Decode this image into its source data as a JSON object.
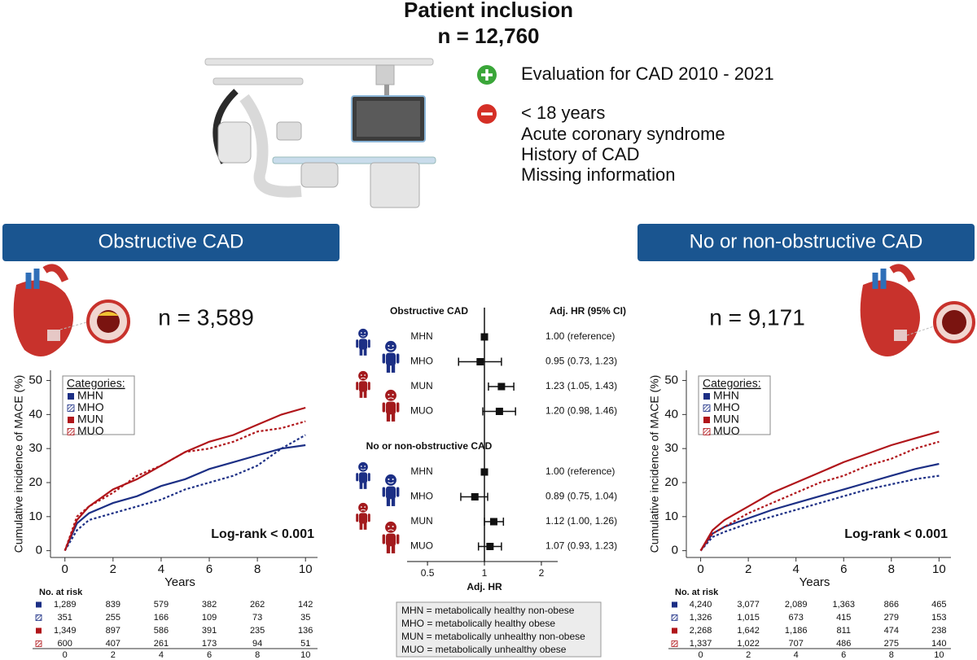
{
  "header": {
    "title": "Patient inclusion",
    "n": "n = 12,760"
  },
  "inclusion": [
    "Evaluation for CAD 2010 - 2021"
  ],
  "exclusion": [
    "< 18 years",
    "Acute coronary syndrome",
    "History of CAD",
    "Missing information"
  ],
  "panels": [
    {
      "title": "Obstructive CAD",
      "n": "n = 3,589"
    },
    {
      "title": "No or non-obstructive CAD",
      "n": "n = 9,171"
    }
  ],
  "abbreviations": [
    "MHN = metabolically healthy non-obese",
    "MHO = metabolically healthy obese",
    "MUN = metabolically unhealthy non-obese",
    "MUO = metabolically unhealthy obese"
  ],
  "chart_data": [
    {
      "type": "line",
      "y_label": "Cumulative incidence of MACE (%)",
      "x_label": "Years",
      "legend_title": "Categories:",
      "annotation": "Log-rank < 0.001",
      "x": [
        0,
        0.5,
        1,
        2,
        3,
        4,
        5,
        6,
        7,
        8,
        9,
        10
      ],
      "series": [
        {
          "name": "MHN",
          "color": "#1c2f85",
          "dash": "solid",
          "values": [
            0,
            8,
            11,
            14,
            16,
            19,
            21,
            24,
            26,
            28,
            30,
            31
          ]
        },
        {
          "name": "MHO",
          "color": "#1c2f85",
          "dash": "dotted",
          "values": [
            0,
            6,
            9,
            11,
            13,
            15,
            18,
            20,
            22,
            25,
            30,
            34
          ]
        },
        {
          "name": "MUN",
          "color": "#b0151a",
          "dash": "solid",
          "values": [
            0,
            9,
            13,
            18,
            21,
            25,
            29,
            32,
            34,
            37,
            40,
            42
          ]
        },
        {
          "name": "MUO",
          "color": "#b0151a",
          "dash": "dotted",
          "values": [
            0,
            10,
            13,
            17,
            22,
            25,
            29,
            30,
            32,
            35,
            36,
            38
          ]
        }
      ],
      "xlim": [
        -0.6,
        10.5
      ],
      "ylim": [
        -2,
        53
      ],
      "xticks": [
        0,
        2,
        4,
        6,
        8,
        10
      ],
      "yticks": [
        0,
        10,
        20,
        30,
        40,
        50
      ],
      "risk_table": {
        "title": "No. at risk",
        "rows": [
          [
            "1,289",
            "839",
            "579",
            "382",
            "262",
            "142"
          ],
          [
            "351",
            "255",
            "166",
            "109",
            "73",
            "35"
          ],
          [
            "1,349",
            "897",
            "586",
            "391",
            "235",
            "136"
          ],
          [
            "600",
            "407",
            "261",
            "173",
            "94",
            "51"
          ]
        ]
      }
    },
    {
      "type": "forest",
      "x_label": "Adj. HR",
      "value_header": "Adj. HR (95% CI)",
      "log_scale": true,
      "xlim": [
        0.39,
        2.44
      ],
      "xticks": [
        0.5,
        1,
        2
      ],
      "groups": [
        {
          "title": "Obstructive CAD",
          "categories": [
            "MHN",
            "MHO",
            "MUN",
            "MUO"
          ],
          "values": [
            1,
            0.95,
            1.23,
            1.2
          ],
          "lower": [
            null,
            0.73,
            1.05,
            0.98
          ],
          "upper": [
            null,
            1.23,
            1.43,
            1.46
          ],
          "value_labels": [
            "1.00 (reference)",
            "0.95 (0.73, 1.23)",
            "1.23 (1.05, 1.43)",
            "1.20 (0.98, 1.46)"
          ]
        },
        {
          "title": "No or non-obstructive CAD",
          "categories": [
            "MHN",
            "MHO",
            "MUN",
            "MUO"
          ],
          "values": [
            1,
            0.89,
            1.12,
            1.07
          ],
          "lower": [
            null,
            0.75,
            1,
            0.93
          ],
          "upper": [
            null,
            1.04,
            1.26,
            1.23
          ],
          "value_labels": [
            "1.00 (reference)",
            "0.89 (0.75, 1.04)",
            "1.12 (1.00, 1.26)",
            "1.07 (0.93, 1.23)"
          ]
        }
      ]
    },
    {
      "type": "line",
      "y_label": "Cumulative incidence of MACE (%)",
      "x_label": "Years",
      "legend_title": "Categories:",
      "annotation": "Log-rank < 0.001",
      "x": [
        0,
        0.5,
        1,
        2,
        3,
        4,
        5,
        6,
        7,
        8,
        9,
        10
      ],
      "series": [
        {
          "name": "MHN",
          "color": "#1c2f85",
          "dash": "solid",
          "values": [
            0,
            5,
            7,
            9.5,
            12,
            14,
            16,
            18,
            20,
            22,
            24,
            25.5
          ]
        },
        {
          "name": "MHO",
          "color": "#1c2f85",
          "dash": "dotted",
          "values": [
            0,
            4,
            5.5,
            8,
            10,
            12,
            14,
            16,
            18,
            19.5,
            21,
            22
          ]
        },
        {
          "name": "MUN",
          "color": "#b0151a",
          "dash": "solid",
          "values": [
            0,
            6,
            9,
            13,
            17,
            20,
            23,
            26,
            28.5,
            31,
            33,
            35
          ]
        },
        {
          "name": "MUO",
          "color": "#b0151a",
          "dash": "dotted",
          "values": [
            0,
            5,
            7,
            11,
            14,
            17,
            20,
            22,
            25,
            27,
            30,
            32
          ]
        }
      ],
      "xlim": [
        -0.6,
        10.5
      ],
      "ylim": [
        -2,
        53
      ],
      "xticks": [
        0,
        2,
        4,
        6,
        8,
        10
      ],
      "yticks": [
        0,
        10,
        20,
        30,
        40,
        50
      ],
      "risk_table": {
        "title": "No. at risk",
        "rows": [
          [
            "4,240",
            "3,077",
            "2,089",
            "1,363",
            "866",
            "465"
          ],
          [
            "1,326",
            "1,015",
            "673",
            "415",
            "279",
            "153"
          ],
          [
            "2,268",
            "1,642",
            "1,186",
            "811",
            "474",
            "238"
          ],
          [
            "1,337",
            "1,022",
            "707",
            "486",
            "275",
            "140"
          ]
        ]
      }
    }
  ]
}
